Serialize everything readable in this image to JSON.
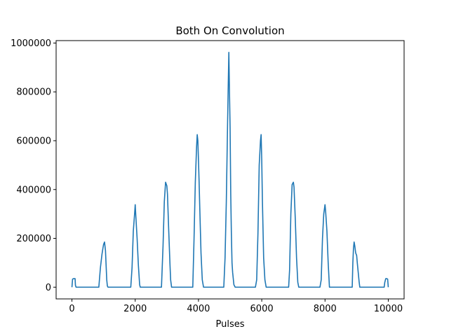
{
  "chart_data": {
    "type": "line",
    "title": "Both On Convolution",
    "xlabel": "Pulses",
    "ylabel": "",
    "xlim": [
      -500,
      10500
    ],
    "ylim": [
      -48000,
      1010000
    ],
    "xticks": [
      0,
      2000,
      4000,
      6000,
      8000,
      10000
    ],
    "xtick_labels": [
      "0",
      "2000",
      "4000",
      "6000",
      "8000",
      "10000"
    ],
    "yticks": [
      0,
      200000,
      400000,
      600000,
      800000,
      1000000
    ],
    "ytick_labels": [
      "0",
      "200000",
      "400000",
      "600000",
      "800000",
      "1000000"
    ],
    "grid": false,
    "line_color": "#1f77b4",
    "series": [
      {
        "x": [
          0,
          20,
          50,
          100,
          110,
          130,
          850,
          900,
          950,
          980,
          1000,
          1030,
          1060,
          1080,
          1100,
          1120,
          1140,
          1860,
          1900,
          1940,
          1980,
          2000,
          2020,
          2060,
          2100,
          2140,
          2160,
          2830,
          2880,
          2920,
          2960,
          3000,
          3020,
          3060,
          3100,
          3120,
          3150,
          3820,
          3860,
          3900,
          3940,
          3960,
          3980,
          4000,
          4020,
          4040,
          4080,
          4120,
          4160,
          4200,
          4800,
          4840,
          4880,
          4920,
          4940,
          4960,
          4980,
          5000,
          5020,
          5040,
          5060,
          5080,
          5120,
          5160,
          5200,
          5800,
          5840,
          5880,
          5920,
          5960,
          5980,
          6000,
          6020,
          6040,
          6060,
          6100,
          6140,
          6180,
          6850,
          6880,
          6920,
          6960,
          7000,
          7020,
          7060,
          7100,
          7140,
          7170,
          7840,
          7880,
          7920,
          7960,
          8000,
          8020,
          8060,
          8100,
          8140,
          8860,
          8880,
          8900,
          8920,
          8940,
          8970,
          9000,
          9020,
          9050,
          9080,
          9100,
          9120,
          9150,
          9870,
          9890,
          9920,
          9950,
          9980,
          10000
        ],
        "y": [
          0,
          33000,
          35000,
          35000,
          8000,
          0,
          0,
          80000,
          135000,
          160000,
          175000,
          185000,
          150000,
          90000,
          30000,
          5000,
          0,
          0,
          80000,
          230000,
          300000,
          338000,
          290000,
          200000,
          90000,
          10000,
          0,
          0,
          170000,
          350000,
          430000,
          415000,
          380000,
          230000,
          90000,
          30000,
          0,
          0,
          200000,
          430000,
          575000,
          625000,
          600000,
          520000,
          430000,
          330000,
          140000,
          30000,
          0,
          0,
          0,
          120000,
          350000,
          670000,
          820000,
          962000,
          800000,
          650000,
          380000,
          220000,
          100000,
          60000,
          10000,
          0,
          0,
          0,
          30000,
          220000,
          500000,
          600000,
          625000,
          520000,
          360000,
          240000,
          120000,
          30000,
          0,
          0,
          0,
          70000,
          300000,
          420000,
          430000,
          410000,
          280000,
          120000,
          20000,
          0,
          0,
          30000,
          200000,
          300000,
          338000,
          310000,
          230000,
          100000,
          0,
          0,
          100000,
          160000,
          185000,
          170000,
          140000,
          130000,
          100000,
          60000,
          20000,
          0,
          0,
          0,
          0,
          20000,
          35000,
          35000,
          33000,
          0
        ]
      }
    ]
  }
}
